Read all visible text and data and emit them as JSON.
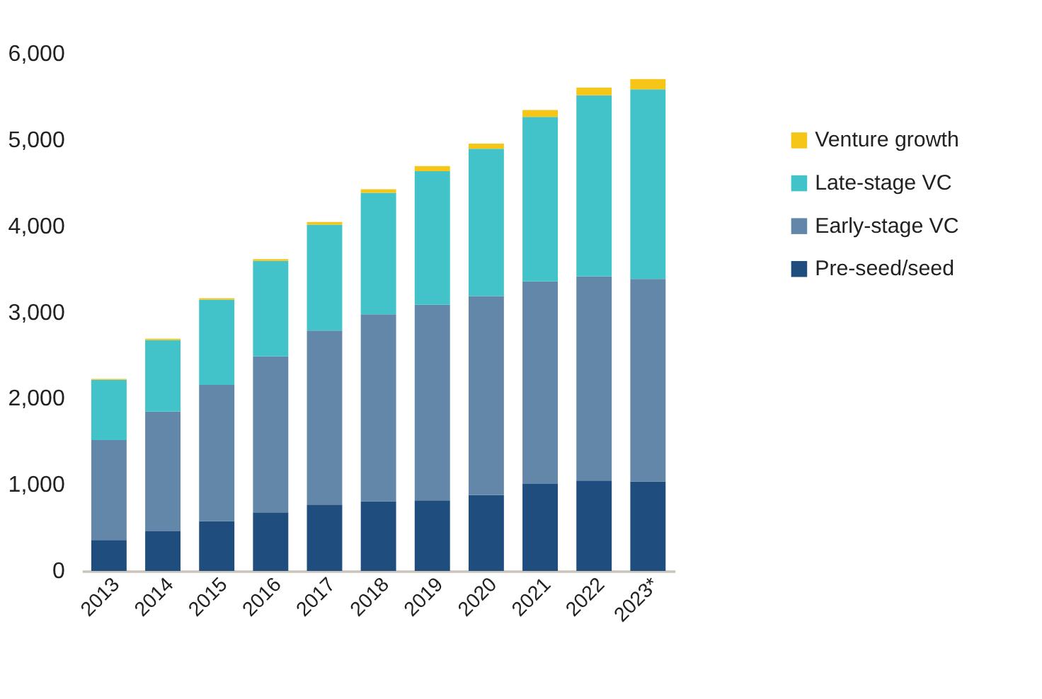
{
  "chart_data": {
    "type": "bar",
    "stacked": true,
    "categories": [
      "2013",
      "2014",
      "2015",
      "2016",
      "2017",
      "2018",
      "2019",
      "2020",
      "2021",
      "2022",
      "2023*"
    ],
    "series": [
      {
        "name": "Pre-seed/seed",
        "color": "#1f4e7e",
        "values": [
          360,
          460,
          580,
          680,
          770,
          810,
          820,
          880,
          1010,
          1050,
          1040
        ]
      },
      {
        "name": "Early-stage VC",
        "color": "#6387a8",
        "values": [
          1160,
          1390,
          1580,
          1810,
          2020,
          2170,
          2270,
          2310,
          2350,
          2370,
          2350
        ]
      },
      {
        "name": "Late-stage VC",
        "color": "#41c3c9",
        "values": [
          700,
          830,
          990,
          1110,
          1230,
          1410,
          1550,
          1710,
          1910,
          2100,
          2200
        ]
      },
      {
        "name": "Venture growth",
        "color": "#f5c518",
        "values": [
          10,
          15,
          15,
          20,
          30,
          40,
          60,
          60,
          80,
          90,
          120
        ]
      }
    ],
    "ylim": [
      0,
      6000
    ],
    "yticks": [
      {
        "value": 0,
        "label": "0"
      },
      {
        "value": 1000,
        "label": "1,000"
      },
      {
        "value": 2000,
        "label": "2,000"
      },
      {
        "value": 3000,
        "label": "3,000"
      },
      {
        "value": 4000,
        "label": "4,000"
      },
      {
        "value": 5000,
        "label": "5,000"
      },
      {
        "value": 6000,
        "label": "6,000"
      }
    ],
    "grid": false,
    "legend": "right"
  }
}
